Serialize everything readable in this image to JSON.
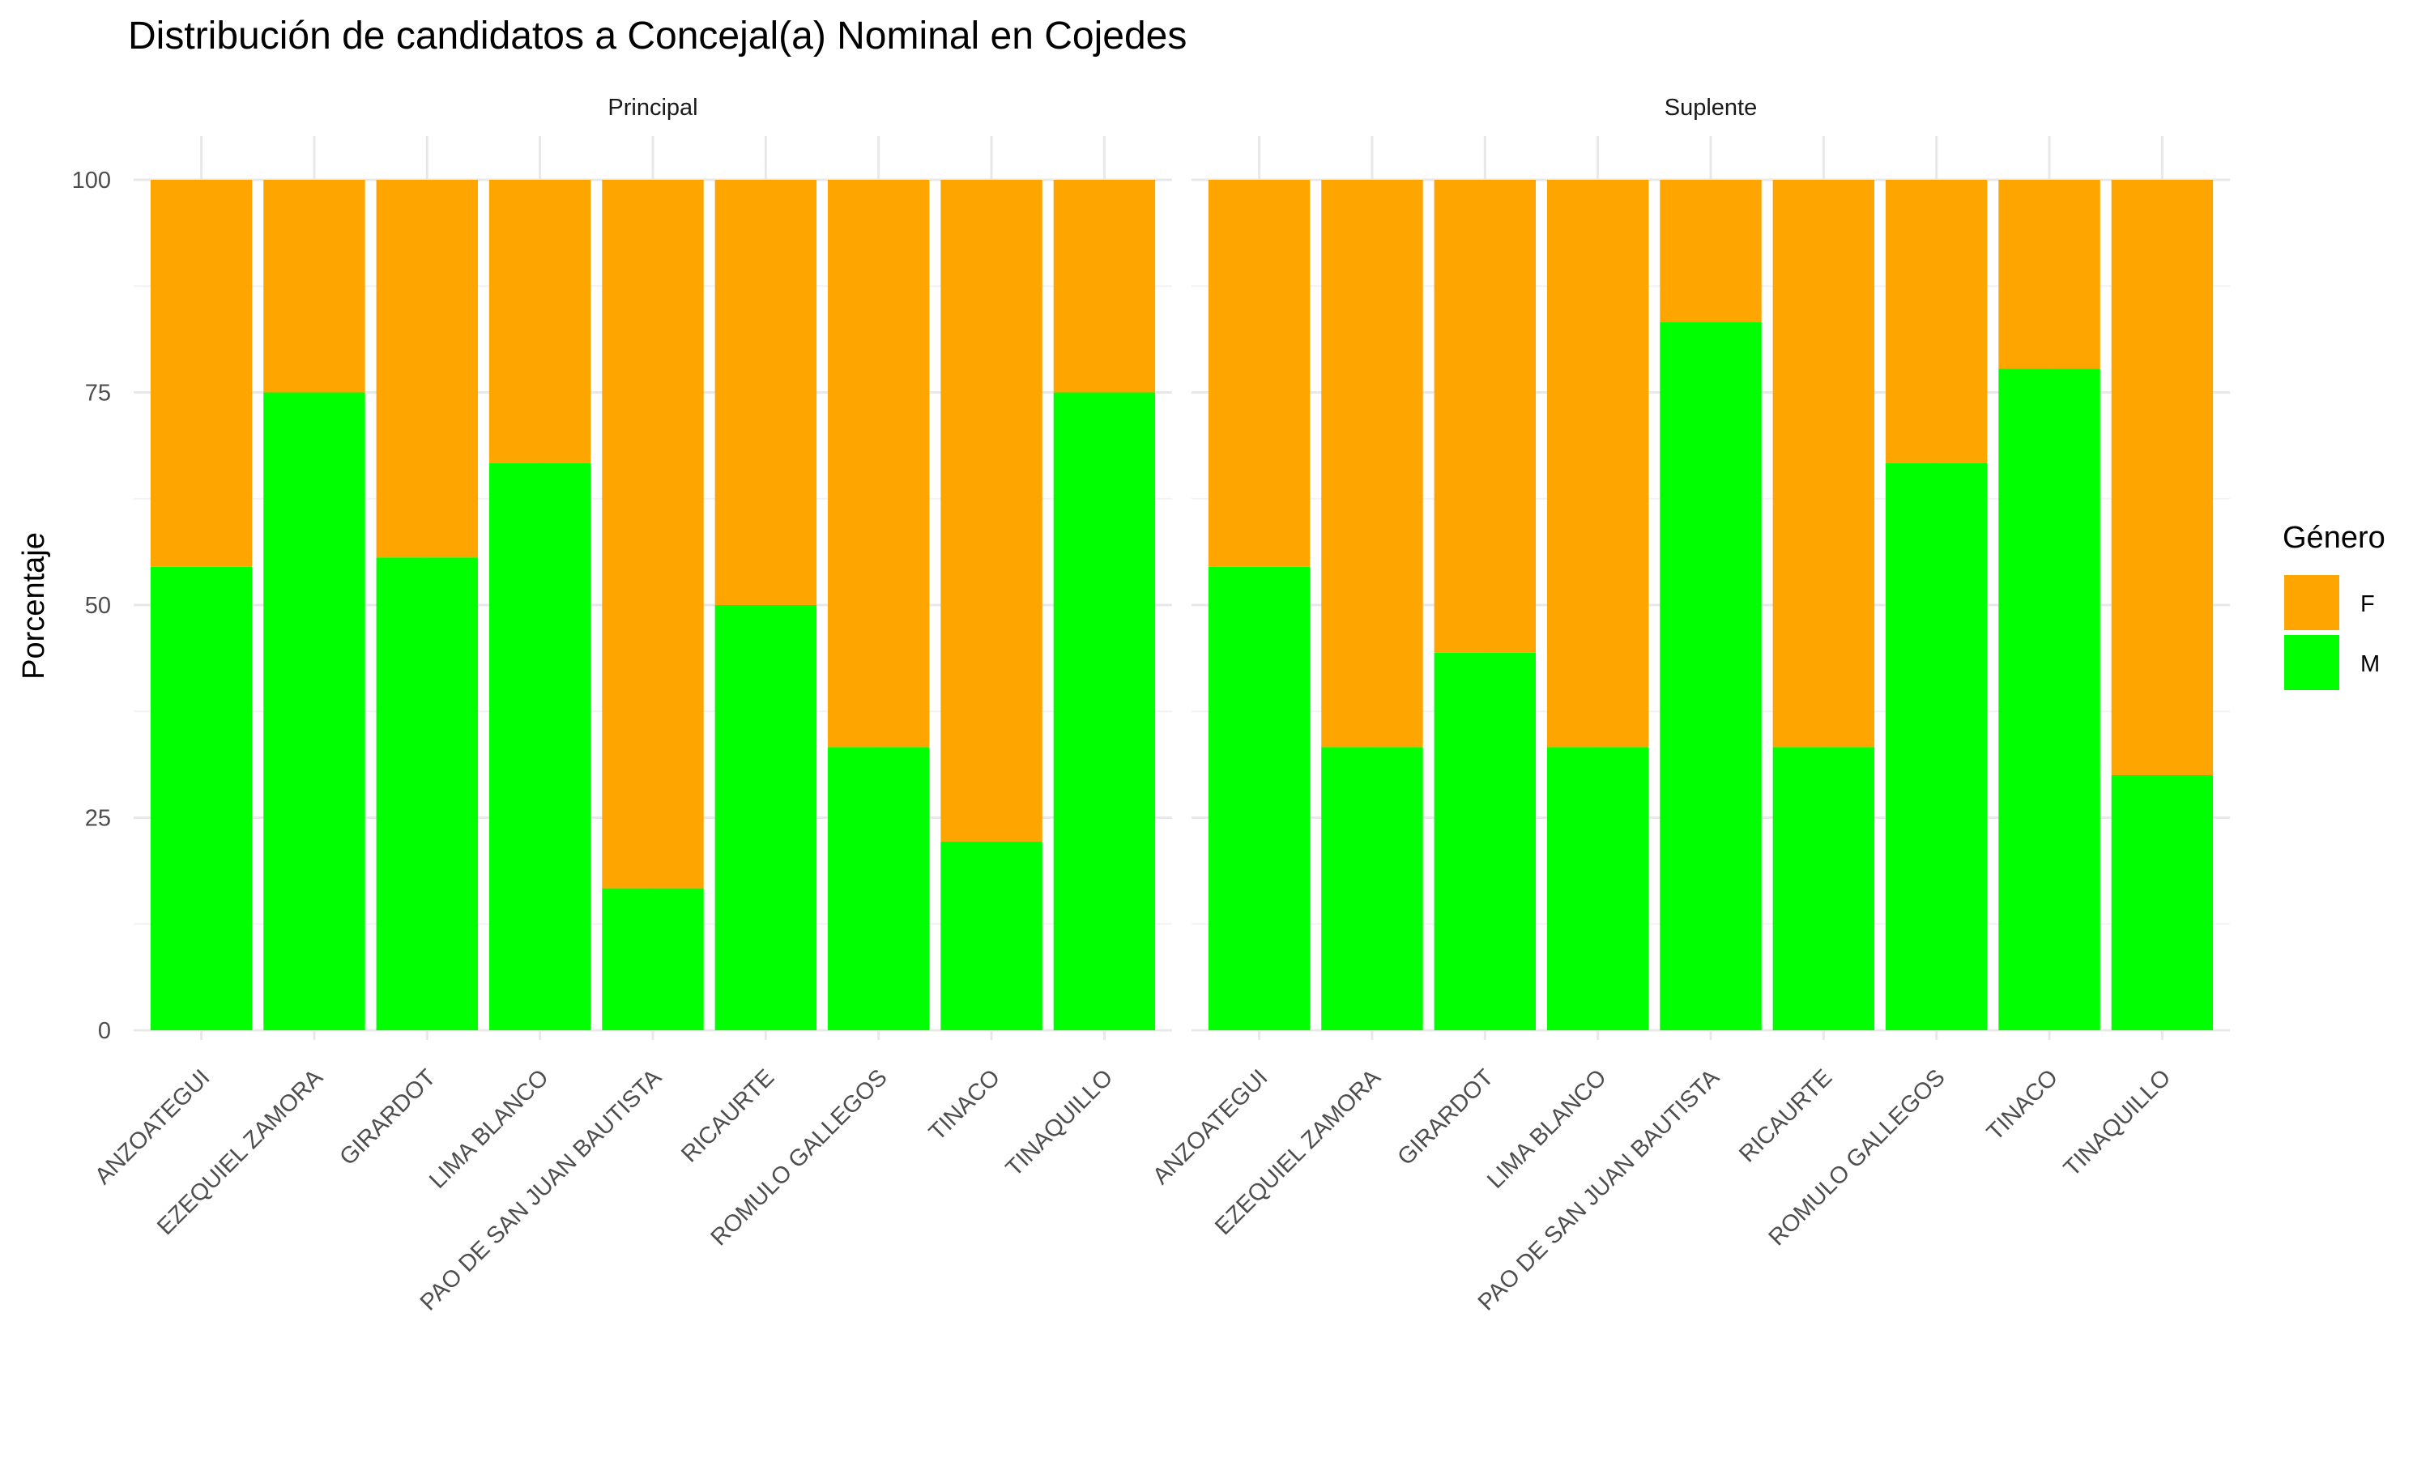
{
  "chart_data": {
    "type": "bar",
    "stacked": true,
    "percent": true,
    "title": "Distribución de candidatos a Concejal(a) Nominal en Cojedes",
    "xlabel": "",
    "ylabel": "Porcentaje",
    "ylim": [
      0,
      100
    ],
    "yticks": [
      "0",
      "25",
      "50",
      "75",
      "100"
    ],
    "grid": true,
    "legend": {
      "title": "Género",
      "position": "right",
      "entries": [
        {
          "label": "F",
          "color": "#FFA500"
        },
        {
          "label": "M",
          "color": "#00FF00"
        }
      ]
    },
    "categories": [
      "ANZOATEGUI",
      "EZEQUIEL ZAMORA",
      "GIRARDOT",
      "LIMA BLANCO",
      "PAO DE SAN JUAN BAUTISTA",
      "RICAURTE",
      "ROMULO GALLEGOS",
      "TINACO",
      "TINAQUILLO"
    ],
    "panels": [
      {
        "name": "Principal",
        "series": [
          {
            "name": "M",
            "color": "#00FF00",
            "values": [
              54.5,
              75,
              55.6,
              66.7,
              16.7,
              50,
              33.3,
              22.2,
              75
            ]
          },
          {
            "name": "F",
            "color": "#FFA500",
            "values": [
              45.5,
              25,
              44.4,
              33.3,
              83.3,
              50,
              66.7,
              77.8,
              25
            ]
          }
        ]
      },
      {
        "name": "Suplente",
        "series": [
          {
            "name": "M",
            "color": "#00FF00",
            "values": [
              54.5,
              33.3,
              44.4,
              33.3,
              83.3,
              33.3,
              66.7,
              77.8,
              30
            ]
          },
          {
            "name": "F",
            "color": "#FFA500",
            "values": [
              45.5,
              66.7,
              55.6,
              66.7,
              16.7,
              66.7,
              33.3,
              22.2,
              70
            ]
          }
        ]
      }
    ]
  }
}
